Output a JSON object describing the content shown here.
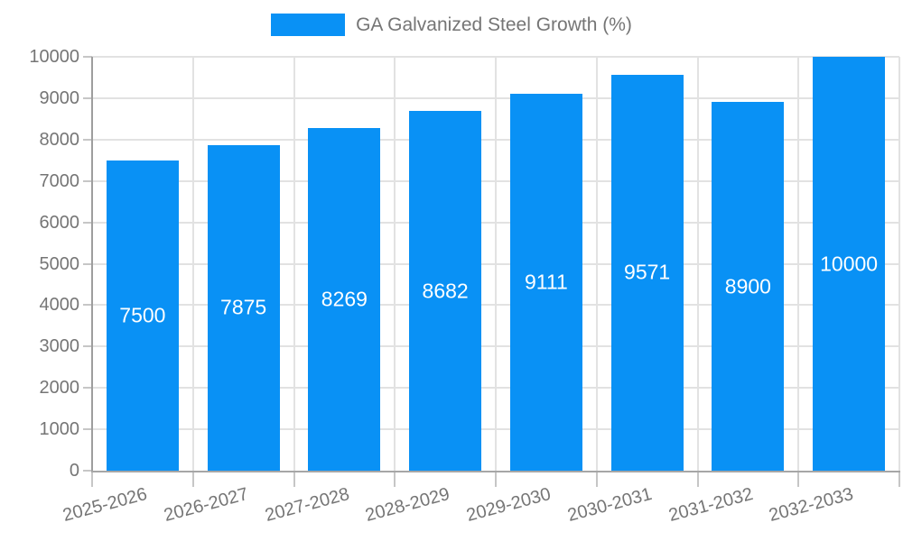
{
  "legend": {
    "label": "GA Galvanized Steel Growth (%)"
  },
  "colors": {
    "bar": "#0991f5",
    "grid": "#e2e2e2",
    "x_axis": "#a6a6a6",
    "y_axis": "#9e9e9e",
    "tick": "#c6c6c6",
    "text": "#757575",
    "value_text": "#ffffff",
    "background": "#ffffff"
  },
  "chart_data": {
    "type": "bar",
    "title": "GA Galvanized Steel Growth (%)",
    "series_name": "GA Galvanized Steel Growth (%)",
    "categories": [
      "2025-2026",
      "2026-2027",
      "2027-2028",
      "2028-2029",
      "2029-2030",
      "2030-2031",
      "2031-2032",
      "2032-2033"
    ],
    "values": [
      7500,
      7875,
      8269,
      8682,
      9111,
      9571,
      8900,
      10000
    ],
    "value_labels": [
      "7500",
      "7875",
      "8269",
      "8682",
      "9111",
      "9571",
      "8900",
      "10000"
    ],
    "xlabel": "",
    "ylabel": "",
    "ylim": [
      0,
      10000
    ],
    "ytick_step": 1000,
    "yticks": [
      0,
      1000,
      2000,
      3000,
      4000,
      5000,
      6000,
      7000,
      8000,
      9000,
      10000
    ],
    "grid": true,
    "legend_position": "top",
    "value_label_position": "inside-center",
    "x_label_rotation_deg": -15
  }
}
